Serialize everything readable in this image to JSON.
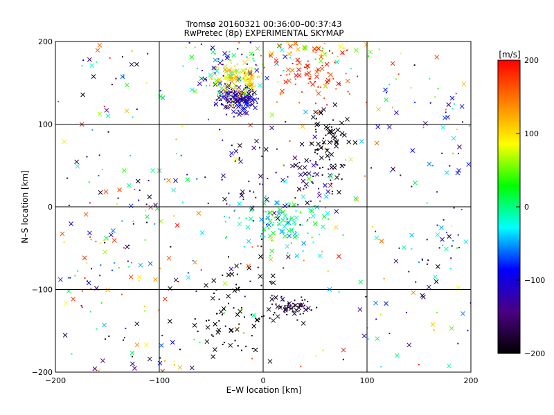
{
  "chart_data": {
    "type": "scatter",
    "title": "Tromsø 20160321 00:36:00–00:37:43",
    "subtitle": "RwPretec (8p) EXPERIMENTAL SKYMAP",
    "xlabel": "E–W location [km]",
    "ylabel": "N–S location [km]",
    "xlim": [
      -200,
      200
    ],
    "ylim": [
      -200,
      200
    ],
    "xticks": [
      "−200",
      "−100",
      "0",
      "100",
      "200"
    ],
    "yticks": [
      "−200",
      "−100",
      "0",
      "100",
      "200"
    ],
    "grid": true,
    "colorbar": {
      "label": "[m/s]",
      "range": [
        -200,
        200
      ],
      "ticks": [
        "200",
        "100",
        "0",
        "−100",
        "−200"
      ],
      "colormap": [
        "#000000",
        "#4b0082",
        "#0000ff",
        "#00ffff",
        "#00ff00",
        "#ffff00",
        "#ff8000",
        "#ff0000"
      ]
    },
    "markers": [
      "x",
      "dot"
    ],
    "clusters": [
      {
        "x": -25,
        "y": 130,
        "sx": 10,
        "sy": 8,
        "n": 150,
        "vmin": -180,
        "vmax": -60
      },
      {
        "x": -25,
        "y": 155,
        "sx": 12,
        "sy": 10,
        "n": 120,
        "vmin": 40,
        "vmax": 140
      },
      {
        "x": -40,
        "y": 170,
        "sx": 25,
        "sy": 15,
        "n": 60,
        "vmin": -150,
        "vmax": 30
      },
      {
        "x": 40,
        "y": 160,
        "sx": 25,
        "sy": 20,
        "n": 90,
        "vmin": 150,
        "vmax": 200
      },
      {
        "x": 40,
        "y": 190,
        "sx": 40,
        "sy": 8,
        "n": 50,
        "vmin": -30,
        "vmax": 200
      },
      {
        "x": 65,
        "y": 70,
        "sx": 10,
        "sy": 20,
        "n": 70,
        "vmin": -200,
        "vmax": -190
      },
      {
        "x": 45,
        "y": 35,
        "sx": 15,
        "sy": 15,
        "n": 40,
        "vmin": -200,
        "vmax": -100
      },
      {
        "x": 20,
        "y": -20,
        "sx": 25,
        "sy": 15,
        "n": 120,
        "vmin": -60,
        "vmax": 40
      },
      {
        "x": 25,
        "y": -120,
        "sx": 12,
        "sy": 6,
        "n": 60,
        "vmin": -200,
        "vmax": -150
      },
      {
        "x": -30,
        "y": -130,
        "sx": 25,
        "sy": 35,
        "n": 80,
        "vmin": -200,
        "vmax": -195
      },
      {
        "x": -20,
        "y": 30,
        "sx": 25,
        "sy": 40,
        "n": 50,
        "vmin": -200,
        "vmax": -120
      },
      {
        "x": -130,
        "y": 0,
        "sx": 30,
        "sy": 40,
        "n": 50,
        "vmin": -200,
        "vmax": 200
      },
      {
        "x": -150,
        "y": -80,
        "sx": 30,
        "sy": 25,
        "n": 40,
        "vmin": -200,
        "vmax": 200
      },
      {
        "x": -150,
        "y": 150,
        "sx": 40,
        "sy": 40,
        "n": 40,
        "vmin": -200,
        "vmax": 200
      },
      {
        "x": 180,
        "y": 50,
        "sx": 20,
        "sy": 40,
        "n": 40,
        "vmin": -180,
        "vmax": 0
      },
      {
        "x": 170,
        "y": -50,
        "sx": 25,
        "sy": 25,
        "n": 30,
        "vmin": -200,
        "vmax": 0
      },
      {
        "x": 130,
        "y": -130,
        "sx": 50,
        "sy": 50,
        "n": 40,
        "vmin": -200,
        "vmax": 200
      },
      {
        "x": -120,
        "y": -170,
        "sx": 40,
        "sy": 25,
        "n": 30,
        "vmin": -200,
        "vmax": 200
      },
      {
        "x": 140,
        "y": 130,
        "sx": 40,
        "sy": 30,
        "n": 30,
        "vmin": -200,
        "vmax": 200
      },
      {
        "x": 0,
        "y": 0,
        "sx": 120,
        "sy": 120,
        "n": 180,
        "vmin": -200,
        "vmax": 200
      }
    ]
  }
}
